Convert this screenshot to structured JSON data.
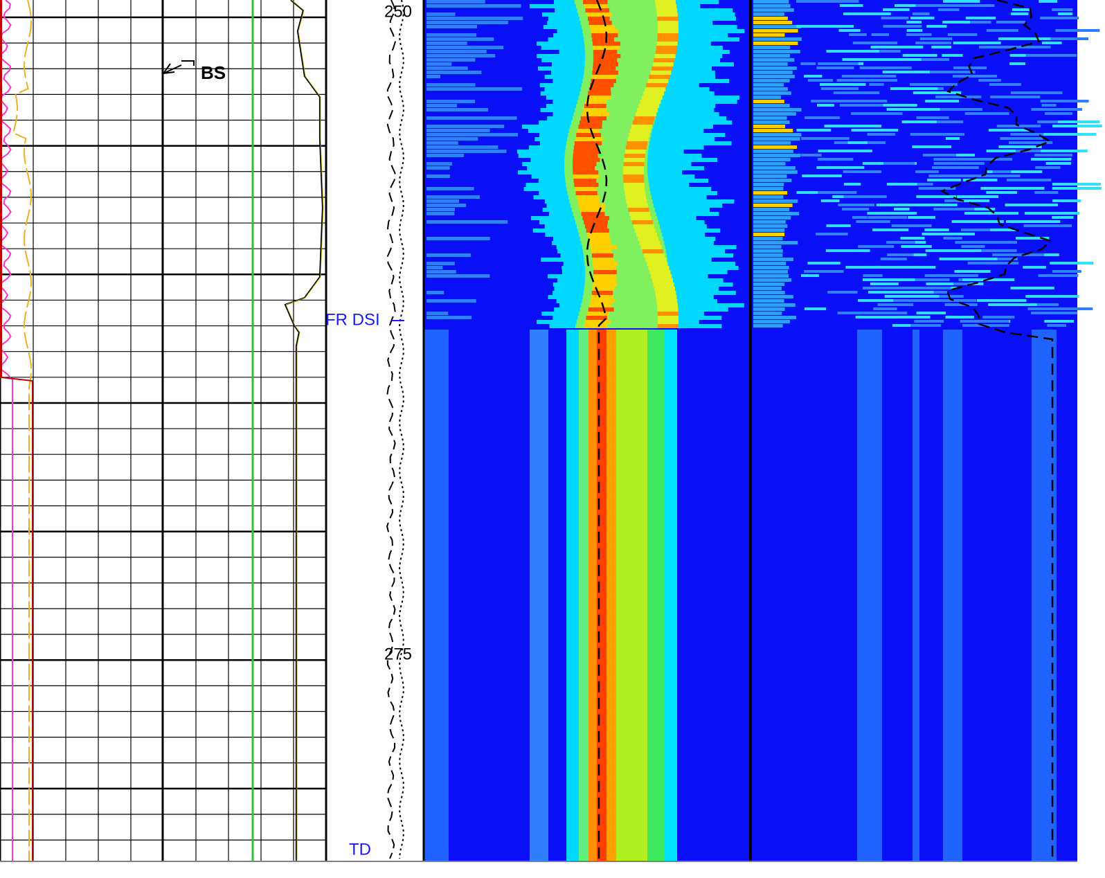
{
  "depth_track": {
    "labels": [
      "250",
      "275"
    ]
  },
  "markers": {
    "formation": "FR DSI",
    "total_depth": "TD"
  },
  "curve_label": "BS"
}
